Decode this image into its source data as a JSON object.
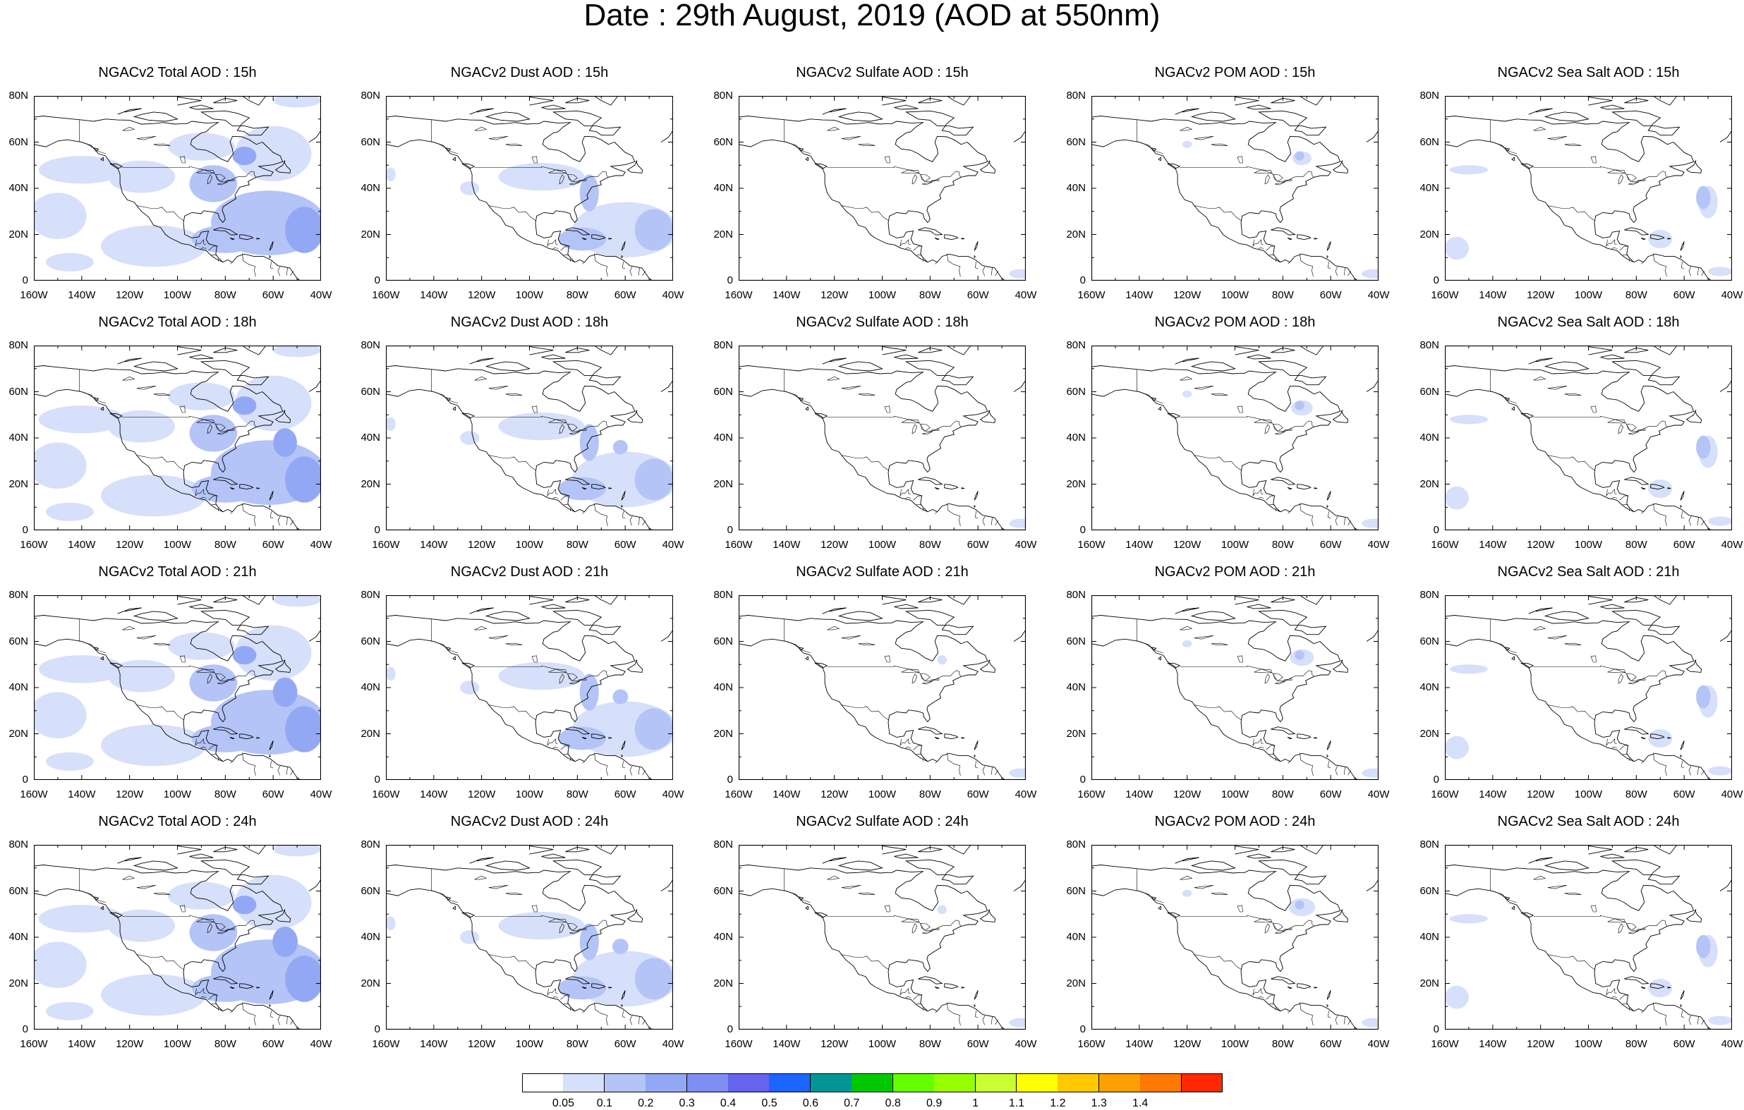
{
  "title": "Date : 29th August, 2019 (AOD at 550nm)",
  "panels": [
    [
      {
        "title": "NGACv2 Total AOD : 15h",
        "species": "total"
      },
      {
        "title": "NGACv2 Dust AOD : 15h",
        "species": "dust"
      },
      {
        "title": "NGACv2 Sulfate AOD : 15h",
        "species": "sulfate"
      },
      {
        "title": "NGACv2 POM AOD : 15h",
        "species": "pom"
      },
      {
        "title": "NGACv2 Sea Salt AOD : 15h",
        "species": "seasalt"
      }
    ],
    [
      {
        "title": "NGACv2 Total AOD : 18h",
        "species": "total"
      },
      {
        "title": "NGACv2 Dust AOD : 18h",
        "species": "dust"
      },
      {
        "title": "NGACv2 Sulfate AOD : 18h",
        "species": "sulfate"
      },
      {
        "title": "NGACv2 POM AOD : 18h",
        "species": "pom"
      },
      {
        "title": "NGACv2 Sea Salt AOD : 18h",
        "species": "seasalt"
      }
    ],
    [
      {
        "title": "NGACv2 Total AOD : 21h",
        "species": "total"
      },
      {
        "title": "NGACv2 Dust AOD : 21h",
        "species": "dust"
      },
      {
        "title": "NGACv2 Sulfate AOD : 21h",
        "species": "sulfate"
      },
      {
        "title": "NGACv2 POM AOD : 21h",
        "species": "pom"
      },
      {
        "title": "NGACv2 Sea Salt AOD : 21h",
        "species": "seasalt"
      }
    ],
    [
      {
        "title": "NGACv2 Total AOD : 24h",
        "species": "total"
      },
      {
        "title": "NGACv2 Dust AOD : 24h",
        "species": "dust"
      },
      {
        "title": "NGACv2 Sulfate AOD : 24h",
        "species": "sulfate"
      },
      {
        "title": "NGACv2 POM AOD : 24h",
        "species": "pom"
      },
      {
        "title": "NGACv2 Sea Salt  AOD : 24h",
        "species": "seasalt"
      }
    ]
  ],
  "lon_labels": [
    "160W",
    "140W",
    "120W",
    "100W",
    "80W",
    "60W",
    "40W"
  ],
  "lat_labels": [
    "0",
    "20N",
    "40N",
    "60N",
    "80N"
  ],
  "colorbar": {
    "colors": [
      "#ffffff",
      "#d6e0fb",
      "#b4c4f7",
      "#93a8f5",
      "#7f8ef3",
      "#6464ee",
      "#1e64ff",
      "#009696",
      "#00c800",
      "#64ff00",
      "#96ff00",
      "#c8ff32",
      "#ffff00",
      "#ffc800",
      "#ffa000",
      "#ff7800",
      "#ff2800"
    ],
    "labels": [
      "0.05",
      "0.1",
      "0.2",
      "0.3",
      "0.4",
      "0.5",
      "0.6",
      "0.7",
      "0.8",
      "0.9",
      "1",
      "1.1",
      "1.2",
      "1.3",
      "1.4"
    ]
  }
}
